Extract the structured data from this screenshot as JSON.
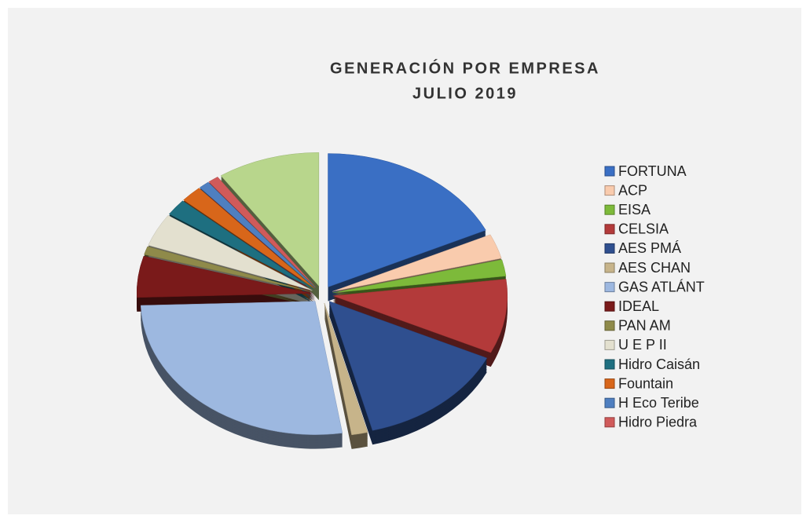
{
  "chart_data": {
    "type": "pie",
    "title": [
      "GENERACIÓN POR EMPRESA",
      "JULIO 2019"
    ],
    "categories": [
      "FORTUNA",
      "ACP",
      "EISA",
      "CELSIA",
      "AES PMÁ",
      "AES CHAN",
      "GAS ATLÁNT",
      "IDEAL",
      "PAN AM",
      "U E P II",
      "Hidro Caisán",
      "Fountain",
      "H Eco Teribe",
      "Hidro Piedra",
      null
    ],
    "values": [
      18,
      3,
      2,
      9,
      14,
      1.5,
      27,
      5,
      1,
      4,
      2,
      2,
      1,
      1,
      9.5
    ],
    "colors": [
      "#3a6fc4",
      "#f9cbad",
      "#7dba3a",
      "#b33a3a",
      "#2f4f8f",
      "#c7b48a",
      "#9db8e0",
      "#7a1a1a",
      "#8f8a4a",
      "#e3e0cf",
      "#1e6f80",
      "#d8661a",
      "#4f7fc0",
      "#d05a5a",
      "#b8d68c"
    ],
    "legend": "right"
  }
}
